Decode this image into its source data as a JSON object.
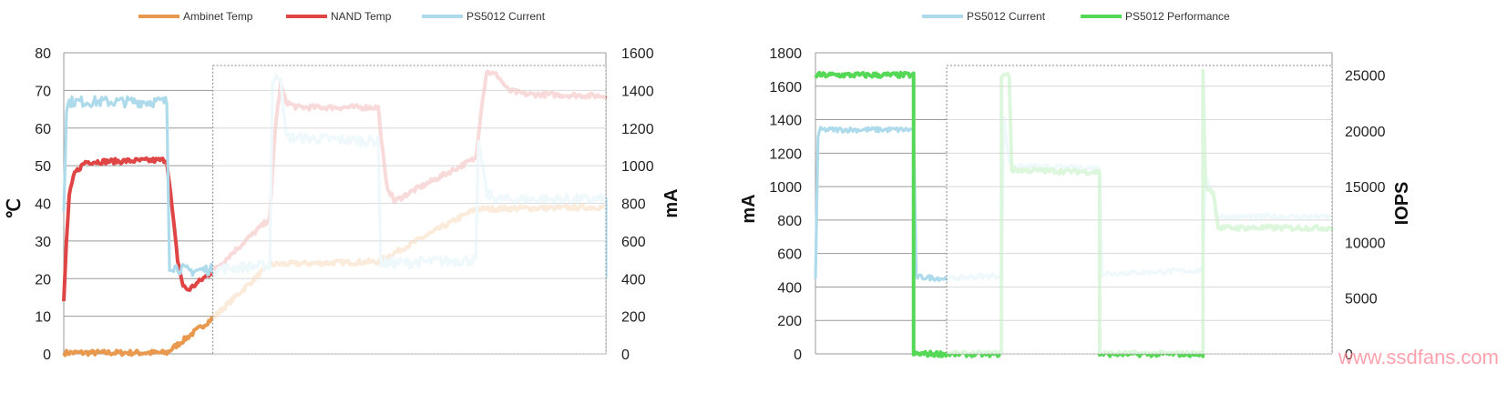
{
  "chart_data": [
    {
      "type": "line",
      "title": "",
      "legend_position": "top",
      "grid": true,
      "y_left": {
        "label": "℃",
        "range": [
          0,
          80
        ],
        "ticks": [
          0,
          10,
          20,
          30,
          40,
          50,
          60,
          70,
          80
        ]
      },
      "y_right": {
        "label": "mA",
        "range": [
          0,
          1600
        ],
        "ticks": [
          0,
          200,
          400,
          600,
          800,
          1000,
          1200,
          1400,
          1600
        ]
      },
      "x_range": [
        0,
        1
      ],
      "highlight_window": [
        0.275,
        1.0
      ],
      "series": [
        {
          "name": "Ambinet Temp",
          "axis": "left",
          "color": "#e8994d",
          "points": [
            [
              0.0,
              0.3
            ],
            [
              0.19,
              0.3
            ],
            [
              0.275,
              9.5
            ],
            [
              0.38,
              23.8
            ],
            [
              0.58,
              24.5
            ],
            [
              0.76,
              38.5
            ],
            [
              1.0,
              39.0
            ]
          ]
        },
        {
          "name": "NAND Temp",
          "axis": "left",
          "color": "#e04545",
          "points": [
            [
              0.0,
              14
            ],
            [
              0.005,
              30
            ],
            [
              0.01,
              42
            ],
            [
              0.02,
              48
            ],
            [
              0.04,
              51
            ],
            [
              0.19,
              51.5
            ],
            [
              0.195,
              45
            ],
            [
              0.21,
              25
            ],
            [
              0.22,
              18
            ],
            [
              0.23,
              17
            ],
            [
              0.275,
              22
            ],
            [
              0.38,
              36
            ],
            [
              0.39,
              60
            ],
            [
              0.4,
              71.5
            ],
            [
              0.41,
              67
            ],
            [
              0.43,
              65.5
            ],
            [
              0.58,
              65.5
            ],
            [
              0.585,
              58
            ],
            [
              0.595,
              45
            ],
            [
              0.61,
              40.5
            ],
            [
              0.64,
              43
            ],
            [
              0.76,
              52
            ],
            [
              0.77,
              65
            ],
            [
              0.78,
              75
            ],
            [
              0.8,
              74
            ],
            [
              0.82,
              70
            ],
            [
              0.85,
              69
            ],
            [
              1.0,
              68.5
            ]
          ]
        },
        {
          "name": "PS5012 Current",
          "axis": "right",
          "color": "#aedbeb",
          "points": [
            [
              0.0,
              760
            ],
            [
              0.005,
              1300
            ],
            [
              0.01,
              1340
            ],
            [
              0.19,
              1340
            ],
            [
              0.195,
              470
            ],
            [
              0.23,
              440
            ],
            [
              0.275,
              450
            ],
            [
              0.38,
              470
            ],
            [
              0.385,
              1450
            ],
            [
              0.4,
              1480
            ],
            [
              0.41,
              1150
            ],
            [
              0.58,
              1130
            ],
            [
              0.585,
              480
            ],
            [
              0.76,
              500
            ],
            [
              0.765,
              1100
            ],
            [
              0.77,
              1050
            ],
            [
              0.78,
              850
            ],
            [
              0.8,
              820
            ],
            [
              1.0,
              820
            ],
            [
              1.0,
              400
            ]
          ]
        }
      ]
    },
    {
      "type": "line",
      "title": "",
      "legend_position": "top",
      "grid": true,
      "y_left": {
        "label": "mA",
        "range": [
          0,
          1800
        ],
        "ticks": [
          0,
          200,
          400,
          600,
          800,
          1000,
          1200,
          1400,
          1600,
          1800
        ]
      },
      "y_right": {
        "label": "IOPS",
        "range": [
          0,
          27000
        ],
        "ticks": [
          0,
          5000,
          10000,
          15000,
          20000,
          25000
        ]
      },
      "x_range": [
        0,
        1
      ],
      "highlight_window": [
        0.254,
        1.0
      ],
      "series": [
        {
          "name": "PS5012 Current",
          "axis": "left",
          "color": "#aedbeb",
          "points": [
            [
              0.0,
              450
            ],
            [
              0.005,
              1300
            ],
            [
              0.01,
              1340
            ],
            [
              0.19,
              1340
            ],
            [
              0.195,
              460
            ],
            [
              0.254,
              450
            ],
            [
              0.36,
              470
            ],
            [
              0.365,
              1400
            ],
            [
              0.375,
              1150
            ],
            [
              0.39,
              1120
            ],
            [
              0.55,
              1110
            ],
            [
              0.555,
              480
            ],
            [
              0.75,
              500
            ],
            [
              0.755,
              1050
            ],
            [
              0.765,
              1000
            ],
            [
              0.78,
              820
            ],
            [
              1.0,
              820
            ]
          ]
        },
        {
          "name": "PS5012 Performance",
          "axis": "right",
          "color": "#55d855",
          "points": [
            [
              0.0,
              25000
            ],
            [
              0.19,
              25000
            ],
            [
              0.19,
              0
            ],
            [
              0.36,
              0
            ],
            [
              0.36,
              25000
            ],
            [
              0.375,
              25000
            ],
            [
              0.38,
              16500
            ],
            [
              0.55,
              16300
            ],
            [
              0.55,
              0
            ],
            [
              0.75,
              0
            ],
            [
              0.75,
              25200
            ],
            [
              0.755,
              15000
            ],
            [
              0.77,
              14500
            ],
            [
              0.78,
              11300
            ],
            [
              1.0,
              11300
            ]
          ]
        }
      ]
    }
  ],
  "watermark": "www.ssdfans.com"
}
